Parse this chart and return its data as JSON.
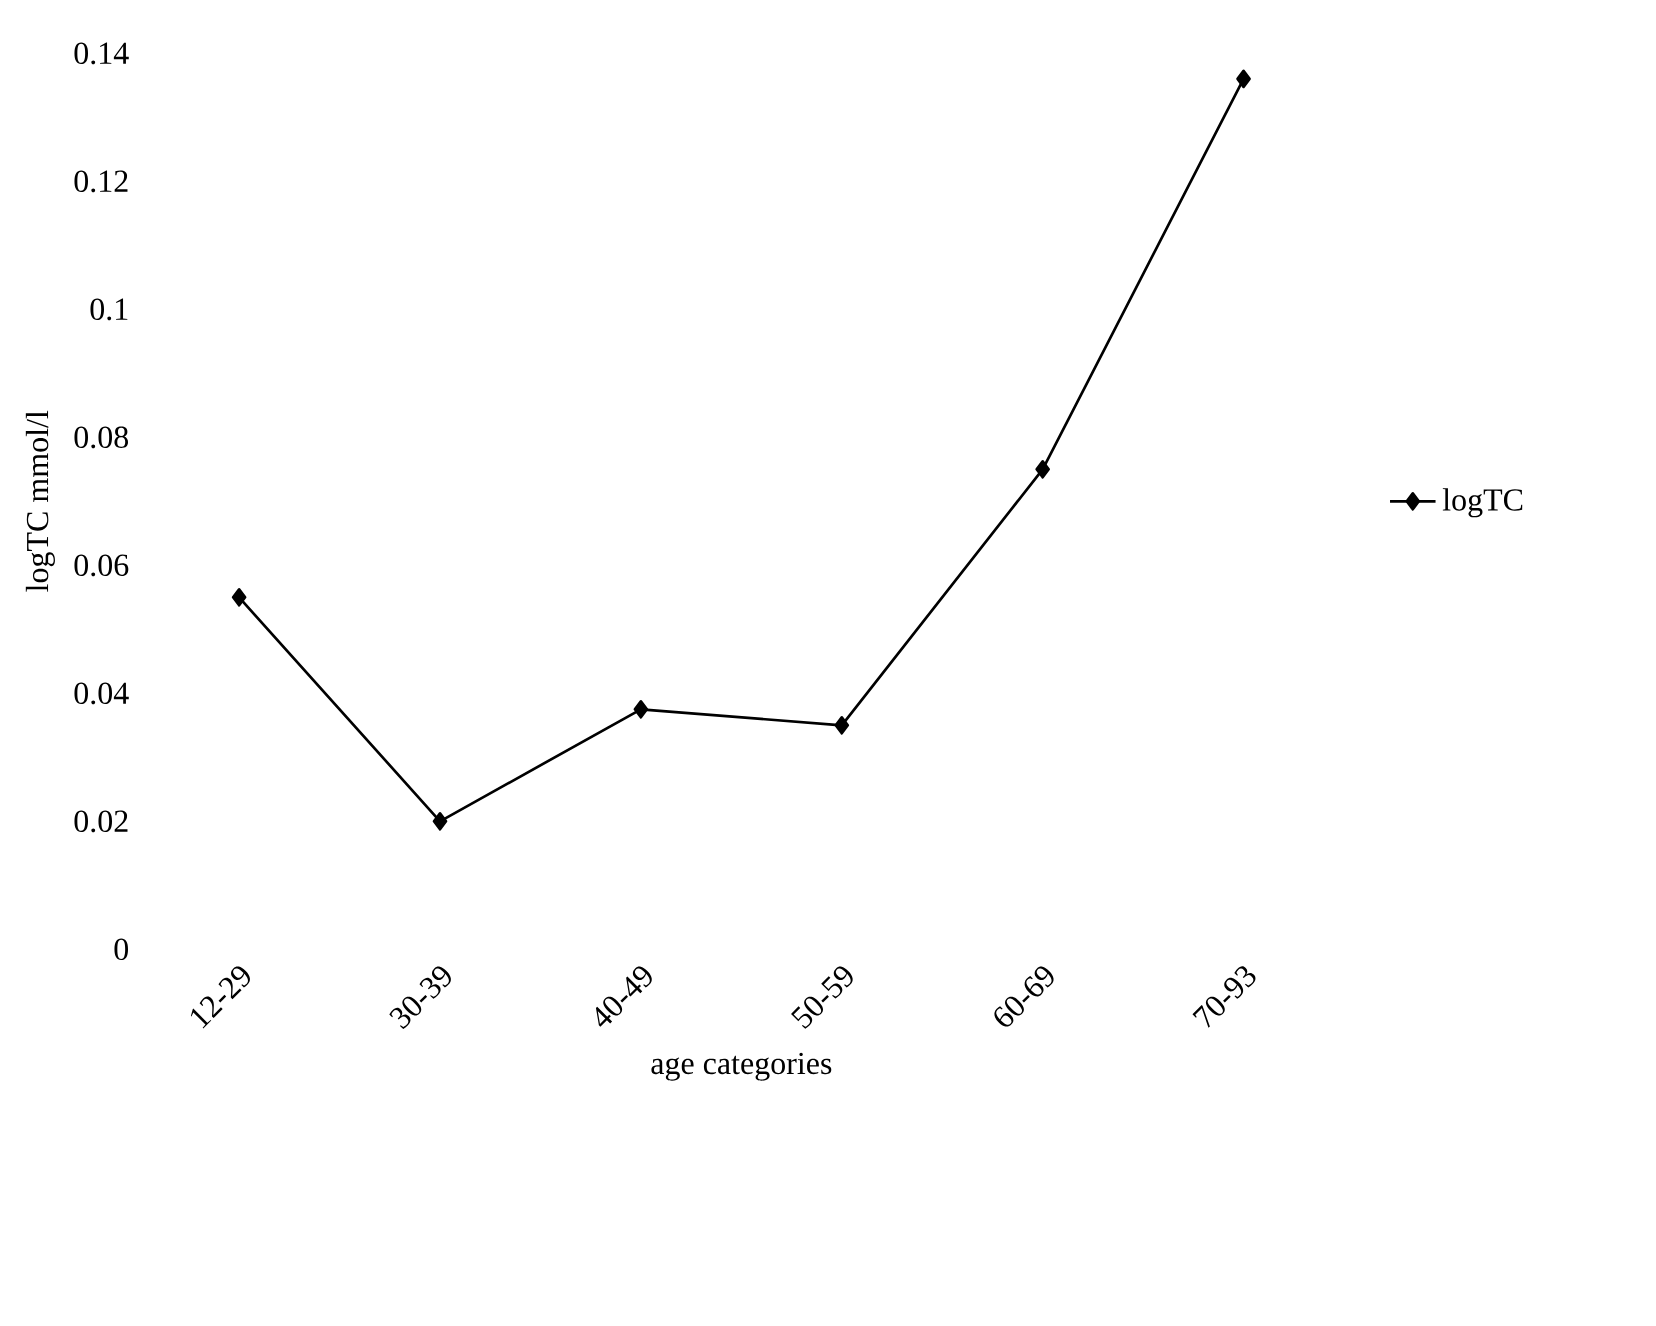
{
  "chart_data": {
    "type": "line",
    "xlabel": "age categories",
    "ylabel": "logTC mmol/l",
    "categories": [
      "12-29",
      "30-39",
      "40-49",
      "50-59",
      "60-69",
      "70-93"
    ],
    "series": [
      {
        "name": "logTC",
        "color": "#000000",
        "values": [
          0.055,
          0.02,
          0.0375,
          0.035,
          0.075,
          0.136
        ]
      }
    ],
    "ylim": [
      0,
      0.14
    ],
    "yticks": [
      0,
      0.02,
      0.04,
      0.06,
      0.08,
      {
        "value": 0.1,
        "label": "0.1"
      },
      0.12,
      0.14
    ],
    "marker": "diamond",
    "line_style": "solid",
    "legend": "right",
    "grid": false
  }
}
